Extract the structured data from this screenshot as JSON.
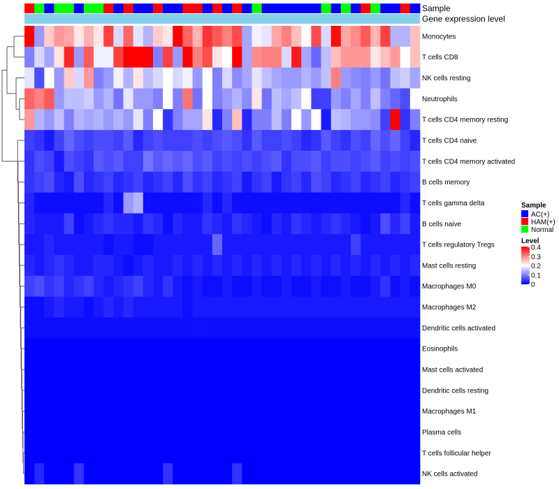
{
  "chart_data": {
    "type": "heatmap",
    "title": "",
    "annotations": {
      "sample_label": "Sample",
      "expression_label": "Gene expression level"
    },
    "sample_groups": [
      "AC(+)",
      "HAM(+)",
      "Normal"
    ],
    "group_colors": {
      "AC(+)": "#0000ff",
      "HAM(+)": "#ff0000",
      "Normal": "#00ff00"
    },
    "column_groups": [
      "HAM(+)",
      "Normal",
      "AC(+)",
      "Normal",
      "Normal",
      "AC(+)",
      "Normal",
      "Normal",
      "HAM(+)",
      "AC(+)",
      "HAM(+)",
      "AC(+)",
      "AC(+)",
      "HAM(+)",
      "AC(+)",
      "AC(+)",
      "HAM(+)",
      "HAM(+)",
      "AC(+)",
      "HAM(+)",
      "AC(+)",
      "HAM(+)",
      "AC(+)",
      "Normal",
      "AC(+)",
      "AC(+)",
      "AC(+)",
      "AC(+)",
      "AC(+)",
      "AC(+)",
      "Normal",
      "AC(+)",
      "Normal",
      "AC(+)",
      "HAM(+)",
      "Normal",
      "AC(+)",
      "AC(+)",
      "HAM(+)",
      "AC(+)"
    ],
    "rows": [
      "Monocytes",
      "T cells CD8",
      "NK cells resting",
      "Neutrophils",
      "T cells CD4 memory resting",
      "T cells CD4 naive",
      "T cells CD4 memory activated",
      "B cells memory",
      "T cells gamma delta",
      "B cells naive",
      "T cells regulatory  Tregs",
      "Mast cells resting",
      "Macrophages M0",
      "Macrophages M2",
      "Dendritic cells activated",
      "Eosinophils",
      "Mast cells activated",
      "Dendritic cells resting",
      "Macrophages M1",
      "Plasma cells",
      "T cells follicular helper",
      "NK cells activated"
    ],
    "values": [
      [
        0.4,
        0.12,
        0.24,
        0.28,
        0.27,
        0.22,
        0.26,
        0.22,
        0.35,
        0.17,
        0.32,
        0.18,
        0.14,
        0.24,
        0.22,
        0.4,
        0.32,
        0.26,
        0.36,
        0.33,
        0.3,
        0.34,
        0.13,
        0.19,
        0.18,
        0.27,
        0.3,
        0.25,
        0.2,
        0.34,
        0.17,
        0.39,
        0.27,
        0.29,
        0.33,
        0.26,
        0.35,
        0.14,
        0.14,
        0.25
      ],
      [
        0.1,
        0.17,
        0.13,
        0.22,
        0.37,
        0.12,
        0.33,
        0.19,
        0.19,
        0.35,
        0.4,
        0.4,
        0.4,
        0.1,
        0.35,
        0.12,
        0.4,
        0.3,
        0.34,
        0.22,
        0.2,
        0.4,
        0.13,
        0.29,
        0.3,
        0.3,
        0.17,
        0.38,
        0.13,
        0.08,
        0.15,
        0.25,
        0.28,
        0.28,
        0.28,
        0.22,
        0.25,
        0.28,
        0.2,
        0.25
      ],
      [
        0.18,
        0.06,
        0.2,
        0.12,
        0.24,
        0.17,
        0.28,
        0.1,
        0.12,
        0.19,
        0.14,
        0.22,
        0.15,
        0.17,
        0.2,
        0.17,
        0.19,
        0.12,
        0.2,
        0.1,
        0.17,
        0.11,
        0.13,
        0.18,
        0.15,
        0.13,
        0.12,
        0.12,
        0.14,
        0.12,
        0.15,
        0.3,
        0.12,
        0.11,
        0.1,
        0.12,
        0.09,
        0.15,
        0.16,
        0.13
      ],
      [
        0.32,
        0.3,
        0.33,
        0.12,
        0.15,
        0.15,
        0.16,
        0.12,
        0.14,
        0.09,
        0.18,
        0.12,
        0.12,
        0.1,
        0.2,
        0.1,
        0.31,
        0.09,
        0.2,
        0.1,
        0.12,
        0.14,
        0.11,
        0.22,
        0.09,
        0.15,
        0.13,
        0.15,
        0.2,
        0.05,
        0.05,
        0.12,
        0.1,
        0.13,
        0.1,
        0.15,
        0.1,
        0.08,
        0.06,
        0.2
      ],
      [
        0.28,
        0.14,
        0.12,
        0.15,
        0.1,
        0.14,
        0.13,
        0.14,
        0.12,
        0.14,
        0.12,
        0.18,
        0.1,
        0.2,
        0.04,
        0.1,
        0.13,
        0.13,
        0.22,
        0.03,
        0.1,
        0.25,
        0.03,
        0.1,
        0.1,
        0.15,
        0.1,
        0.2,
        0.12,
        0.2,
        0.02,
        0.15,
        0.14,
        0.12,
        0.12,
        0.11,
        0.05,
        0.4,
        0.04,
        0.1
      ],
      [
        0.05,
        0.04,
        0.02,
        0.05,
        0.08,
        0.06,
        0.05,
        0.06,
        0.06,
        0.05,
        0.07,
        0.03,
        0.05,
        0.06,
        0.05,
        0.05,
        0.05,
        0.06,
        0.05,
        0.06,
        0.07,
        0.06,
        0.04,
        0.07,
        0.05,
        0.05,
        0.06,
        0.05,
        0.03,
        0.04,
        0.07,
        0.05,
        0.04,
        0.06,
        0.05,
        0.08,
        0.06,
        0.08,
        0.05,
        0.03
      ],
      [
        0.04,
        0.06,
        0.05,
        0.02,
        0.06,
        0.05,
        0.04,
        0.07,
        0.06,
        0.07,
        0.05,
        0.05,
        0.09,
        0.07,
        0.08,
        0.07,
        0.08,
        0.06,
        0.07,
        0.05,
        0.06,
        0.05,
        0.06,
        0.05,
        0.06,
        0.07,
        0.04,
        0.06,
        0.06,
        0.07,
        0.05,
        0.06,
        0.06,
        0.05,
        0.06,
        0.07,
        0.05,
        0.06,
        0.05,
        0.06
      ],
      [
        0.04,
        0.05,
        0.06,
        0.03,
        0.02,
        0.06,
        0.03,
        0.04,
        0.05,
        0.03,
        0.04,
        0.05,
        0.03,
        0.04,
        0.05,
        0.03,
        0.06,
        0.04,
        0.05,
        0.03,
        0.04,
        0.05,
        0.02,
        0.04,
        0.05,
        0.02,
        0.04,
        0.05,
        0.03,
        0.06,
        0.05,
        0.03,
        0.04,
        0.05,
        0.03,
        0.04,
        0.05,
        0.03,
        0.04,
        0.05
      ],
      [
        0.03,
        0.01,
        0.01,
        0.01,
        0.01,
        0.01,
        0.01,
        0.01,
        0.03,
        0.01,
        0.12,
        0.14,
        0.01,
        0.01,
        0.01,
        0.01,
        0.01,
        0.01,
        0.03,
        0.01,
        0.03,
        0.01,
        0.01,
        0.01,
        0.01,
        0.01,
        0.01,
        0.01,
        0.01,
        0.01,
        0.01,
        0.01,
        0.01,
        0.01,
        0.01,
        0.01,
        0.01,
        0.01,
        0.03,
        0.01
      ],
      [
        0.03,
        0.02,
        0.02,
        0.02,
        0.05,
        0.01,
        0.02,
        0.03,
        0.04,
        0.03,
        0.03,
        0.02,
        0.04,
        0.03,
        0.01,
        0.03,
        0.02,
        0.02,
        0.04,
        0.03,
        0.02,
        0.04,
        0.03,
        0.02,
        0.01,
        0.03,
        0.02,
        0.04,
        0.03,
        0.02,
        0.03,
        0.04,
        0.03,
        0.02,
        0.01,
        0.02,
        0.06,
        0.03,
        0.05,
        0.02
      ],
      [
        0.02,
        0.02,
        0.03,
        0.02,
        0.02,
        0.02,
        0.02,
        0.02,
        0.01,
        0.02,
        0.02,
        0.01,
        0.01,
        0.02,
        0.02,
        0.02,
        0.02,
        0.02,
        0.02,
        0.08,
        0.02,
        0.02,
        0.02,
        0.02,
        0.02,
        0.02,
        0.02,
        0.02,
        0.02,
        0.02,
        0.02,
        0.02,
        0.02,
        0.05,
        0.02,
        0.02,
        0.02,
        0.02,
        0.02,
        0.02
      ],
      [
        0.03,
        0.02,
        0.03,
        0.04,
        0.03,
        0.02,
        0.02,
        0.03,
        0.03,
        0.02,
        0.01,
        0.02,
        0.03,
        0.02,
        0.02,
        0.03,
        0.02,
        0.03,
        0.02,
        0.03,
        0.02,
        0.03,
        0.02,
        0.03,
        0.02,
        0.03,
        0.02,
        0.03,
        0.02,
        0.03,
        0.02,
        0.03,
        0.02,
        0.03,
        0.02,
        0.03,
        0.02,
        0.03,
        0.02,
        0.03
      ],
      [
        0.05,
        0.06,
        0.04,
        0.05,
        0.03,
        0.04,
        0.05,
        0.03,
        0.02,
        0.03,
        0.04,
        0.05,
        0.03,
        0.02,
        0.04,
        0.02,
        0.01,
        0.02,
        0.01,
        0.01,
        0.02,
        0.01,
        0.01,
        0.02,
        0.01,
        0.01,
        0.02,
        0.01,
        0.01,
        0.02,
        0.01,
        0.01,
        0.02,
        0.01,
        0.01,
        0.02,
        0.04,
        0.01,
        0.02,
        0.01
      ],
      [
        0.01,
        0.01,
        0.02,
        0.03,
        0.02,
        0.02,
        0.01,
        0.02,
        0.03,
        0.02,
        0.03,
        0.02,
        0.02,
        0.02,
        0.02,
        0.02,
        0.01,
        0.02,
        0.02,
        0.02,
        0.02,
        0.02,
        0.02,
        0.02,
        0.02,
        0.02,
        0.02,
        0.02,
        0.02,
        0.02,
        0.02,
        0.02,
        0.02,
        0.02,
        0.02,
        0.02,
        0.02,
        0.02,
        0.02,
        0.02
      ],
      [
        0.01,
        0.01,
        0.01,
        0.01,
        0.01,
        0.01,
        0.01,
        0.01,
        0.01,
        0.01,
        0.01,
        0.01,
        0.01,
        0.01,
        0.01,
        0.01,
        0.01,
        0.01,
        0.01,
        0.01,
        0.01,
        0.01,
        0.01,
        0.01,
        0.01,
        0.01,
        0.01,
        0.01,
        0.01,
        0.01,
        0.01,
        0.01,
        0.01,
        0.01,
        0.01,
        0.01,
        0.01,
        0.01,
        0.01,
        0.01
      ],
      [
        0,
        0,
        0,
        0,
        0,
        0,
        0,
        0,
        0,
        0,
        0,
        0,
        0,
        0,
        0,
        0,
        0,
        0,
        0,
        0,
        0,
        0,
        0,
        0,
        0,
        0,
        0,
        0,
        0,
        0,
        0,
        0,
        0,
        0,
        0,
        0,
        0,
        0,
        0,
        0
      ],
      [
        0,
        0,
        0,
        0,
        0,
        0,
        0,
        0,
        0,
        0,
        0,
        0,
        0,
        0,
        0,
        0,
        0,
        0,
        0,
        0,
        0,
        0,
        0,
        0,
        0,
        0,
        0,
        0,
        0,
        0,
        0,
        0,
        0,
        0,
        0,
        0,
        0,
        0,
        0,
        0
      ],
      [
        0,
        0,
        0,
        0,
        0,
        0,
        0,
        0,
        0,
        0,
        0,
        0,
        0,
        0,
        0,
        0,
        0,
        0,
        0,
        0,
        0,
        0,
        0,
        0,
        0,
        0,
        0,
        0,
        0,
        0,
        0,
        0,
        0,
        0,
        0,
        0,
        0,
        0,
        0,
        0
      ],
      [
        0,
        0,
        0,
        0,
        0,
        0,
        0,
        0,
        0,
        0,
        0,
        0,
        0,
        0,
        0,
        0,
        0,
        0,
        0,
        0,
        0,
        0,
        0,
        0,
        0,
        0,
        0,
        0,
        0,
        0,
        0,
        0,
        0,
        0,
        0,
        0,
        0,
        0,
        0,
        0
      ],
      [
        0,
        0,
        0,
        0,
        0,
        0,
        0,
        0,
        0,
        0,
        0,
        0,
        0,
        0,
        0,
        0,
        0,
        0,
        0,
        0,
        0,
        0,
        0,
        0,
        0,
        0,
        0,
        0,
        0,
        0,
        0,
        0,
        0,
        0,
        0,
        0,
        0,
        0,
        0,
        0
      ],
      [
        0,
        0,
        0,
        0,
        0,
        0,
        0,
        0,
        0,
        0,
        0,
        0,
        0,
        0,
        0,
        0,
        0,
        0,
        0,
        0,
        0,
        0,
        0,
        0,
        0,
        0,
        0,
        0,
        0,
        0,
        0,
        0,
        0,
        0,
        0,
        0,
        0,
        0,
        0,
        0
      ],
      [
        0,
        0.03,
        0,
        0,
        0,
        0.04,
        0,
        0,
        0,
        0,
        0,
        0,
        0,
        0,
        0.04,
        0,
        0,
        0,
        0,
        0,
        0,
        0.04,
        0,
        0,
        0,
        0,
        0,
        0,
        0,
        0,
        0,
        0,
        0,
        0,
        0,
        0,
        0,
        0,
        0,
        0
      ]
    ],
    "color_scale": {
      "min": 0,
      "mid": 0.2,
      "max": 0.4,
      "low": "#0000ff",
      "midColor": "#ffffff",
      "high": "#ff0000"
    },
    "legend": {
      "sample_title": "Sample",
      "level_title": "Level",
      "level_ticks": [
        "0.4",
        "0.3",
        "0.2",
        "0.1",
        "0"
      ]
    },
    "legend_position": "right",
    "dendrogram": "rows"
  }
}
